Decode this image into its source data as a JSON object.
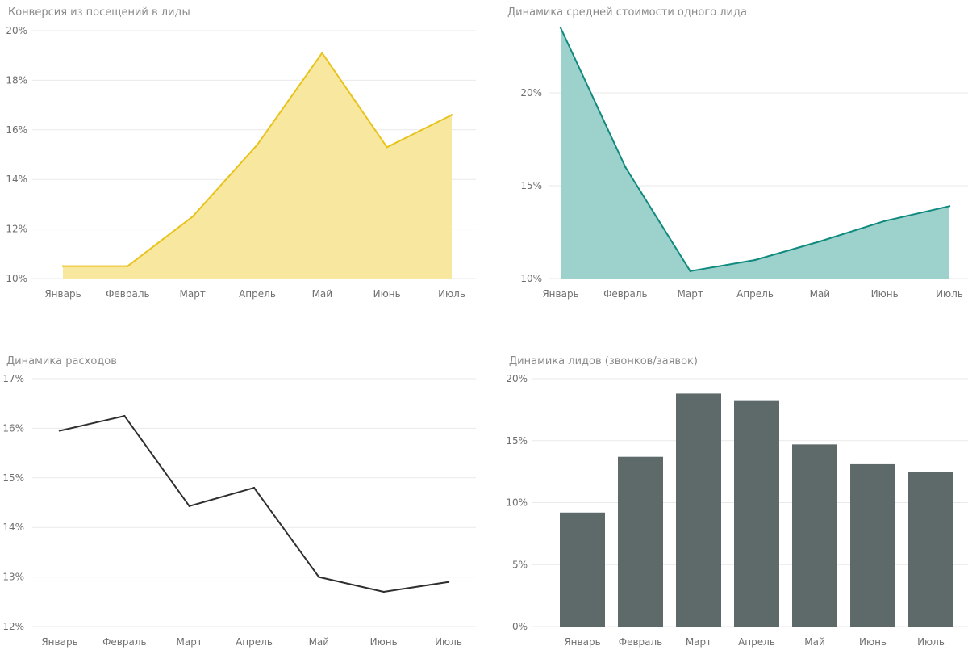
{
  "colors": {
    "grid": "#e9e9e9",
    "tick": "#6f6f6f",
    "title": "#8a8a8a",
    "yellow_line": "#e8c31c",
    "yellow_fill": "#f8e79e",
    "teal_line": "#108a7e",
    "teal_fill": "#9dd1cc",
    "dark_line": "#2f2f2f",
    "bar": "#5e6a6a"
  },
  "chart_data": [
    {
      "id": "conversion",
      "type": "area",
      "title": "Конверсия из посещений в лиды",
      "categories": [
        "Январь",
        "Февраль",
        "Март",
        "Апрель",
        "Май",
        "Июнь",
        "Июль"
      ],
      "series": [
        {
          "values": [
            10.5,
            10.5,
            12.5,
            15.4,
            19.1,
            15.3,
            16.6
          ]
        }
      ],
      "ylim": [
        10,
        20
      ],
      "yticks": [
        "10%",
        "12%",
        "14%",
        "16%",
        "18%",
        "20%"
      ],
      "ytick_values": [
        10,
        12,
        14,
        16,
        18,
        20
      ],
      "xlabel": "",
      "ylabel": "",
      "grid": true
    },
    {
      "id": "lead-cost",
      "type": "area",
      "title": "Динамика средней стоимости одного лида",
      "categories": [
        "Январь",
        "Февраль",
        "Март",
        "Апрель",
        "Май",
        "Июнь",
        "Июль"
      ],
      "series": [
        {
          "values": [
            23.5,
            16.0,
            10.4,
            11.0,
            12.0,
            13.1,
            13.9
          ]
        }
      ],
      "ylim": [
        10,
        24
      ],
      "yticks": [
        "10%",
        "15%",
        "20%"
      ],
      "ytick_values": [
        10,
        15,
        20
      ],
      "xlabel": "",
      "ylabel": "",
      "grid": true
    },
    {
      "id": "expenses",
      "type": "line",
      "title": "Динамика расходов",
      "categories": [
        "Январь",
        "Февраль",
        "Март",
        "Апрель",
        "Май",
        "Июнь",
        "Июль"
      ],
      "series": [
        {
          "values": [
            15.95,
            16.25,
            14.43,
            14.8,
            13.0,
            12.7,
            12.9
          ]
        }
      ],
      "ylim": [
        12,
        17
      ],
      "yticks": [
        "12%",
        "13%",
        "14%",
        "15%",
        "16%",
        "17%"
      ],
      "ytick_values": [
        12,
        13,
        14,
        15,
        16,
        17
      ],
      "xlabel": "",
      "ylabel": "",
      "grid": true
    },
    {
      "id": "leads",
      "type": "bar",
      "title": "Динамика лидов (звонков/заявок)",
      "categories": [
        "Январь",
        "Февраль",
        "Март",
        "Апрель",
        "Май",
        "Июнь",
        "Июль"
      ],
      "series": [
        {
          "values": [
            9.2,
            13.7,
            18.8,
            18.2,
            14.7,
            13.1,
            12.5
          ]
        }
      ],
      "ylim": [
        0,
        20
      ],
      "yticks": [
        "0%",
        "5%",
        "10%",
        "15%",
        "20%"
      ],
      "ytick_values": [
        0,
        5,
        10,
        15,
        20
      ],
      "xlabel": "",
      "ylabel": "",
      "grid": true
    }
  ]
}
